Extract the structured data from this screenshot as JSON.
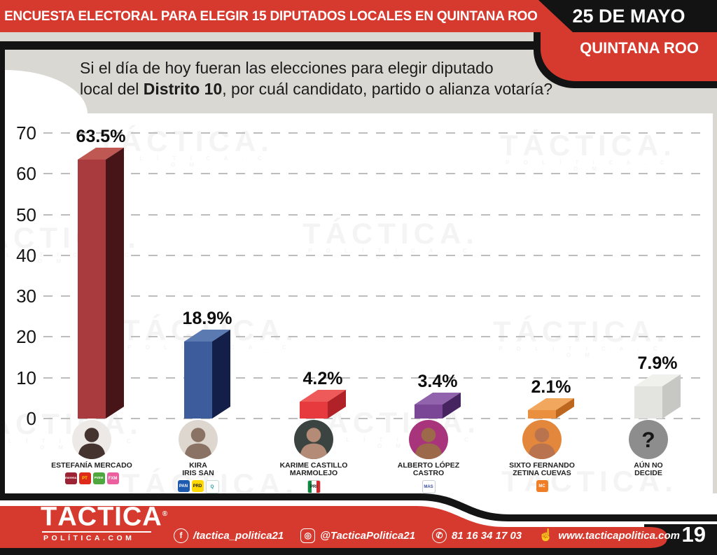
{
  "header": {
    "title": "ENCUESTA ELECTORAL PARA ELEGIR 15 DIPUTADOS LOCALES EN QUINTANA ROO",
    "date": "25 DE MAYO",
    "region": "QUINTANA ROO"
  },
  "question": {
    "line1": "Si el día de hoy fueran las elecciones para elegir diputado",
    "line2_pre": "local del ",
    "line2_bold": "Distrito 10",
    "line2_post": ", por cuál candidato, partido o alianza votaría?"
  },
  "chart_data": {
    "type": "bar",
    "title": "",
    "categories": [
      "ESTEFANÍA MERCADO",
      "KIRA IRIS SAN",
      "KARIME CASTILLO MARMOLEJO",
      "ALBERTO LÓPEZ CASTRO",
      "SIXTO FERNANDO ZETINA CUEVAS",
      "AÚN NO DECIDE"
    ],
    "values": [
      63.5,
      18.9,
      4.2,
      3.4,
      2.1,
      7.9
    ],
    "labels": [
      "63.5%",
      "18.9%",
      "4.2%",
      "3.4%",
      "2.1%",
      "7.9%"
    ],
    "ylim": [
      0,
      70
    ],
    "yticks": [
      0,
      10,
      20,
      30,
      40,
      50,
      60,
      70
    ],
    "grid": "horizontal-dashed",
    "legend": "none",
    "bar_style": "3d",
    "colors": [
      {
        "front": "#a93b3f",
        "side": "#471418",
        "top": "#bf5853"
      },
      {
        "front": "#3c5c9b",
        "side": "#131f49",
        "top": "#5b7ab2"
      },
      {
        "front": "#e73a3f",
        "side": "#b02228",
        "top": "#ee5a5a"
      },
      {
        "front": "#7a4796",
        "side": "#452460",
        "top": "#9263ad"
      },
      {
        "front": "#e98f3e",
        "side": "#bc661e",
        "top": "#f2a75f"
      },
      {
        "front": "#e3e3df",
        "side": "#c7c7c3",
        "top": "#f0f0ec"
      }
    ]
  },
  "candidates": [
    {
      "name_lines": [
        "ESTEFANÍA MERCADO"
      ],
      "avatar": {
        "type": "photo",
        "bg": "#ece9e6",
        "person": "#44332f"
      },
      "parties": [
        {
          "label": "morena",
          "bg": "#9c2333",
          "fg": "#ffffff"
        },
        {
          "label": "PT",
          "bg": "#dd2a1b",
          "fg": "#ffd500"
        },
        {
          "label": "PVEM",
          "bg": "#4fa83d",
          "fg": "#ffffff"
        },
        {
          "label": "FXM",
          "bg": "#ec5f9f",
          "fg": "#ffffff"
        }
      ]
    },
    {
      "name_lines": [
        "KIRA",
        "IRIS SAN"
      ],
      "avatar": {
        "type": "photo",
        "bg": "#ddd7d0",
        "person": "#8a7364"
      },
      "parties": [
        {
          "label": "PAN",
          "bg": "#1e5bae",
          "fg": "#ffffff"
        },
        {
          "label": "PRD",
          "bg": "#ffd900",
          "fg": "#1a1a1a"
        },
        {
          "label": "Q",
          "bg": "#ffffff",
          "fg": "#1796a5",
          "border": "#c8d6d6"
        }
      ]
    },
    {
      "name_lines": [
        "KARIME CASTILLO",
        "MARMOLEJO"
      ],
      "avatar": {
        "type": "photo",
        "bg": "#3c4442",
        "person": "#b38b76"
      },
      "parties": [
        {
          "label": "PRI",
          "bg": "linear-gradient(90deg,#0a8a3c 30%,#ffffff 30% 70%,#d5262c 70%)",
          "fg": "#1a1a1a",
          "border": "#cccccc"
        }
      ]
    },
    {
      "name_lines": [
        "ALBERTO LÓPEZ",
        "CASTRO"
      ],
      "avatar": {
        "type": "photo",
        "bg": "#a8347c",
        "person": "#9c6a4a"
      },
      "parties": [
        {
          "label": "MAS",
          "bg": "#ffffff",
          "fg": "#3d4fa1",
          "border": "#c8cdda"
        }
      ]
    },
    {
      "name_lines": [
        "SIXTO FERNANDO",
        "ZETINA CUEVAS"
      ],
      "avatar": {
        "type": "photo",
        "bg": "#e2873b",
        "person": "#b9734e"
      },
      "parties": [
        {
          "label": "MC",
          "bg": "#f07e26",
          "fg": "#ffffff"
        }
      ]
    },
    {
      "name_lines": [
        "AÚN NO",
        "DECIDE"
      ],
      "avatar": {
        "type": "question",
        "bg": "#8d8d8d",
        "glyph": "?",
        "glyph_color": "#161616"
      },
      "parties": []
    }
  ],
  "watermark": {
    "text": "TÁCTICA.",
    "sub": "P O L Í T I C A . C O M"
  },
  "footer": {
    "brand": "TÁCTICA",
    "brand_reg": "®",
    "brand_sub": "POLÍTICA.COM",
    "facebook": "/tactica_politica21",
    "instagram": "@TacticaPolitica21",
    "phone": "81 16 34 17 03",
    "website": "www.tacticapolitica.com",
    "page": "19",
    "icons": {
      "facebook": {
        "glyph": "f"
      },
      "instagram": {
        "glyph": "◎"
      },
      "phone": {
        "glyph": "✆"
      },
      "click": {
        "glyph": "☝"
      }
    }
  }
}
